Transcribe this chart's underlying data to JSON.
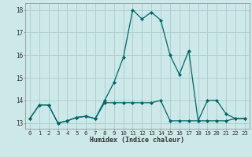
{
  "xlabel": "Humidex (Indice chaleur)",
  "line1_x": [
    0,
    1,
    2,
    3,
    4,
    5,
    6,
    7,
    8,
    9,
    10,
    11,
    12,
    13,
    14,
    15,
    16,
    17,
    18,
    19,
    20,
    21,
    22,
    23
  ],
  "line1_y": [
    13.2,
    13.8,
    13.8,
    13.0,
    13.1,
    13.25,
    13.3,
    13.2,
    14.0,
    14.8,
    15.9,
    18.0,
    17.6,
    17.9,
    17.55,
    16.0,
    15.15,
    16.2,
    13.1,
    14.0,
    14.0,
    13.4,
    13.2,
    13.2
  ],
  "line2_x": [
    0,
    1,
    2,
    3,
    4,
    5,
    6,
    7,
    8,
    9,
    10,
    11,
    12,
    13,
    14,
    15,
    16,
    17,
    18,
    19,
    20,
    21,
    22,
    23
  ],
  "line2_y": [
    13.2,
    13.8,
    13.8,
    13.0,
    13.1,
    13.25,
    13.3,
    13.2,
    13.9,
    13.9,
    13.9,
    13.9,
    13.9,
    13.9,
    14.0,
    13.1,
    13.1,
    13.1,
    13.1,
    13.1,
    13.1,
    13.1,
    13.2,
    13.2
  ],
  "line_color": "#006666",
  "bg_color": "#cce8e8",
  "grid_color": "#aacccc",
  "ylim": [
    12.75,
    18.3
  ],
  "xlim": [
    -0.5,
    23.5
  ],
  "yticks": [
    13,
    14,
    15,
    16,
    17,
    18
  ],
  "xticks": [
    0,
    1,
    2,
    3,
    4,
    5,
    6,
    7,
    8,
    9,
    10,
    11,
    12,
    13,
    14,
    15,
    16,
    17,
    18,
    19,
    20,
    21,
    22,
    23
  ],
  "xlabel_fontsize": 6.0,
  "tick_fontsize": 5.2
}
